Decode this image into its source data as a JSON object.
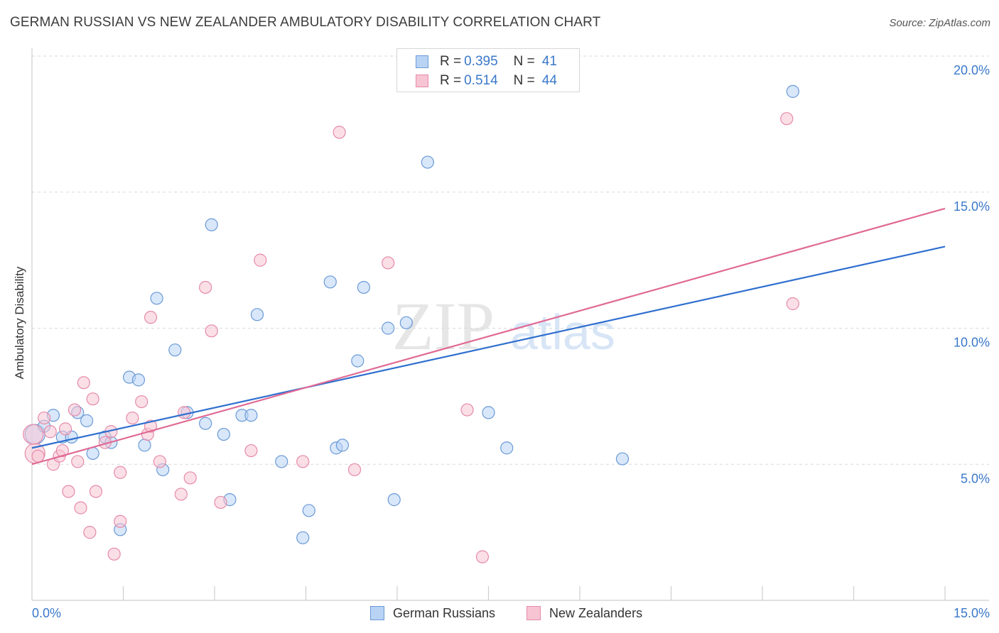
{
  "title": "GERMAN RUSSIAN VS NEW ZEALANDER AMBULATORY DISABILITY CORRELATION CHART",
  "source": "Source: ZipAtlas.com",
  "watermark": {
    "zip": "ZIP",
    "atlas": "atlas"
  },
  "legend": {
    "series1": {
      "r_label": "R = ",
      "r_value": "0.395",
      "n_label": "N = ",
      "n_value": "41"
    },
    "series2": {
      "r_label": "R = ",
      "r_value": "0.514",
      "n_label": "N = ",
      "n_value": "44"
    }
  },
  "colors": {
    "blue_fill": "#b9d3f5",
    "blue_stroke": "#6a9ad6",
    "blue_line": "#2f6fcf",
    "pink_fill": "#f7c4d4",
    "pink_stroke": "#e58aa9",
    "pink_line": "#e06a95",
    "tick_text": "#3a78c9"
  },
  "chart_data": {
    "type": "scatter",
    "title": "GERMAN RUSSIAN VS NEW ZEALANDER AMBULATORY DISABILITY CORRELATION CHART",
    "xlabel": "",
    "ylabel": "Ambulatory Disability",
    "xlim": [
      0,
      15
    ],
    "ylim": [
      0,
      20
    ],
    "x_tick_labels": [
      "0.0%",
      "15.0%"
    ],
    "y_tick_labels": [
      "5.0%",
      "10.0%",
      "15.0%",
      "20.0%"
    ],
    "y_ticks": [
      5,
      10,
      15,
      20
    ],
    "grid": true,
    "series": [
      {
        "name": "German Russians",
        "color": "blue",
        "r": 0.395,
        "n": 41,
        "trend": {
          "x": [
            0,
            15
          ],
          "y": [
            5.6,
            13.0
          ]
        },
        "points": [
          [
            0.05,
            6.1
          ],
          [
            0.2,
            6.4
          ],
          [
            0.35,
            6.8
          ],
          [
            0.5,
            6.0
          ],
          [
            0.65,
            6.0
          ],
          [
            0.75,
            6.9
          ],
          [
            0.9,
            6.6
          ],
          [
            1.0,
            5.4
          ],
          [
            1.2,
            6.0
          ],
          [
            1.3,
            5.8
          ],
          [
            1.45,
            2.6
          ],
          [
            1.6,
            8.2
          ],
          [
            1.75,
            8.1
          ],
          [
            1.85,
            5.7
          ],
          [
            2.05,
            11.1
          ],
          [
            2.15,
            4.8
          ],
          [
            2.35,
            9.2
          ],
          [
            2.55,
            6.9
          ],
          [
            2.85,
            6.5
          ],
          [
            2.95,
            13.8
          ],
          [
            3.15,
            6.1
          ],
          [
            3.25,
            3.7
          ],
          [
            3.45,
            6.8
          ],
          [
            3.6,
            6.8
          ],
          [
            3.7,
            10.5
          ],
          [
            4.1,
            5.1
          ],
          [
            4.45,
            2.3
          ],
          [
            4.55,
            3.3
          ],
          [
            4.9,
            11.7
          ],
          [
            5.0,
            5.6
          ],
          [
            5.1,
            5.7
          ],
          [
            5.35,
            8.8
          ],
          [
            5.45,
            11.5
          ],
          [
            5.85,
            10.0
          ],
          [
            5.95,
            3.7
          ],
          [
            6.15,
            10.2
          ],
          [
            6.5,
            16.1
          ],
          [
            7.5,
            6.9
          ],
          [
            7.8,
            5.6
          ],
          [
            9.7,
            5.2
          ],
          [
            12.5,
            18.7
          ]
        ]
      },
      {
        "name": "New Zealanders",
        "color": "pink",
        "r": 0.514,
        "n": 44,
        "trend": {
          "x": [
            0,
            15
          ],
          "y": [
            5.0,
            14.4
          ]
        },
        "points": [
          [
            0.05,
            5.4
          ],
          [
            0.1,
            5.3
          ],
          [
            0.2,
            6.7
          ],
          [
            0.3,
            6.2
          ],
          [
            0.35,
            5.0
          ],
          [
            0.45,
            5.3
          ],
          [
            0.5,
            5.5
          ],
          [
            0.55,
            6.3
          ],
          [
            0.6,
            4.0
          ],
          [
            0.7,
            7.0
          ],
          [
            0.75,
            5.1
          ],
          [
            0.8,
            3.4
          ],
          [
            0.85,
            8.0
          ],
          [
            0.95,
            2.5
          ],
          [
            1.0,
            7.4
          ],
          [
            1.05,
            4.0
          ],
          [
            1.2,
            5.8
          ],
          [
            1.3,
            6.2
          ],
          [
            1.35,
            1.7
          ],
          [
            1.45,
            2.9
          ],
          [
            1.45,
            4.7
          ],
          [
            1.65,
            6.7
          ],
          [
            1.8,
            7.3
          ],
          [
            1.9,
            6.1
          ],
          [
            1.95,
            6.4
          ],
          [
            1.95,
            10.4
          ],
          [
            2.1,
            5.1
          ],
          [
            2.45,
            3.9
          ],
          [
            2.5,
            6.9
          ],
          [
            2.6,
            4.5
          ],
          [
            2.85,
            11.5
          ],
          [
            2.95,
            9.9
          ],
          [
            3.1,
            3.6
          ],
          [
            3.6,
            5.5
          ],
          [
            3.75,
            12.5
          ],
          [
            4.45,
            5.1
          ],
          [
            5.05,
            17.2
          ],
          [
            5.3,
            4.8
          ],
          [
            5.85,
            12.4
          ],
          [
            7.15,
            7.0
          ],
          [
            7.4,
            1.6
          ],
          [
            12.4,
            17.7
          ],
          [
            12.5,
            10.9
          ],
          [
            0.02,
            6.1
          ]
        ]
      }
    ]
  },
  "bottom_legend": {
    "series1": "German Russians",
    "series2": "New Zealanders"
  }
}
